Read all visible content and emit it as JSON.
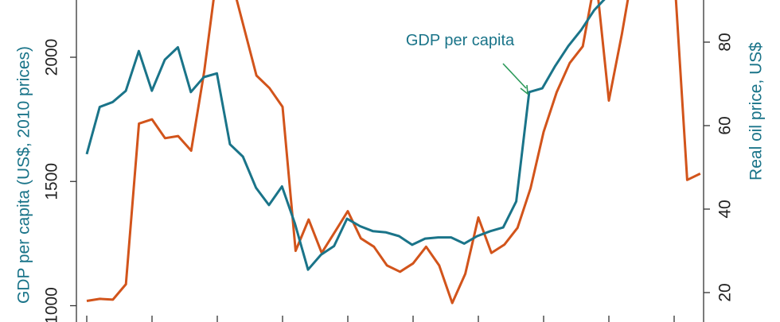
{
  "chart_data": {
    "type": "line",
    "left_axis": {
      "label": "GDP per capita (US$, 2010 prices)",
      "ticks": [
        "1000",
        "1500",
        "2000"
      ],
      "tick_values": [
        1000,
        1500,
        2000
      ]
    },
    "right_axis": {
      "label": "Real oil price, US$",
      "ticks": [
        "20",
        "40",
        "60",
        "80"
      ],
      "tick_values": [
        20,
        40,
        60,
        80
      ]
    },
    "annotation": {
      "text": "GDP per capita"
    },
    "series": [
      {
        "axis": "left",
        "color": "#1a7489",
        "values": [
          1610,
          1800,
          1820,
          1865,
          2025,
          1865,
          1990,
          2040,
          1860,
          1920,
          1935,
          1650,
          1600,
          1475,
          1405,
          1480,
          1330,
          1145,
          1205,
          1240,
          1350,
          1320,
          1300,
          1295,
          1280,
          1245,
          1270,
          1275,
          1275,
          1250,
          1280,
          1300,
          1315,
          1420,
          1860,
          1875,
          1965,
          2045,
          2110,
          2190,
          2245
        ]
      },
      {
        "axis": "right",
        "color": "#d2541b",
        "values": [
          18,
          18.5,
          18.3,
          22,
          60.5,
          61.5,
          57,
          57.5,
          54,
          73,
          97,
          96,
          84,
          72,
          69,
          64.5,
          30,
          37.5,
          29.5,
          34.5,
          39.5,
          33,
          31,
          26.5,
          25,
          27,
          31,
          26.5,
          17.5,
          24.5,
          38,
          29.5,
          31.5,
          35.5,
          45,
          58.5,
          68,
          75,
          79,
          96,
          66,
          82,
          100,
          96,
          98,
          97,
          47,
          48.5
        ]
      }
    ]
  }
}
